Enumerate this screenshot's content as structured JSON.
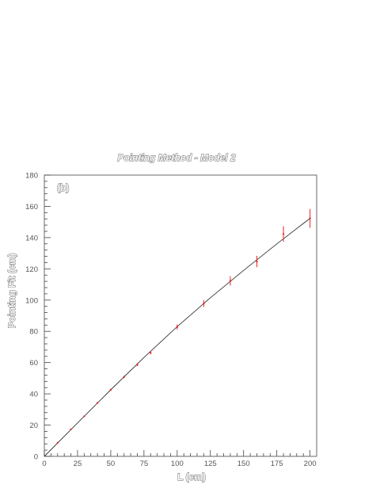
{
  "chart_data": {
    "type": "scatter",
    "title": "Pointing Method - Model 2",
    "panel_label": "(b)",
    "xlabel": "L (cm)",
    "ylabel": "Pointing Fit (cm)",
    "xlim": [
      0,
      205
    ],
    "ylim": [
      0,
      180
    ],
    "xticks": [
      0,
      25,
      50,
      75,
      100,
      125,
      150,
      175,
      200
    ],
    "yticks": [
      0,
      20,
      40,
      60,
      80,
      100,
      120,
      140,
      160,
      180
    ],
    "grid": false,
    "series": [
      {
        "x": [
          10,
          20,
          30,
          40,
          50,
          60,
          70,
          80,
          100,
          120,
          140,
          160,
          180,
          200
        ],
        "y": [
          8.7,
          17.3,
          25.6,
          34.2,
          42.6,
          50.8,
          58.7,
          66.3,
          82.8,
          97.8,
          112.3,
          124.7,
          142.3,
          152.3
        ],
        "yerr": [
          0.3,
          0.4,
          0.5,
          0.6,
          0.7,
          0.8,
          0.9,
          1.0,
          1.6,
          2.2,
          3.0,
          3.6,
          5.0,
          6.0
        ],
        "color": "#e8242a"
      }
    ],
    "fit": {
      "x": [
        0,
        25,
        50,
        75,
        100,
        125,
        150,
        175,
        200
      ],
      "y": [
        0,
        21.4,
        42.6,
        63.3,
        83.0,
        101.5,
        119.0,
        136.0,
        152.3
      ],
      "color": "#333333"
    }
  }
}
